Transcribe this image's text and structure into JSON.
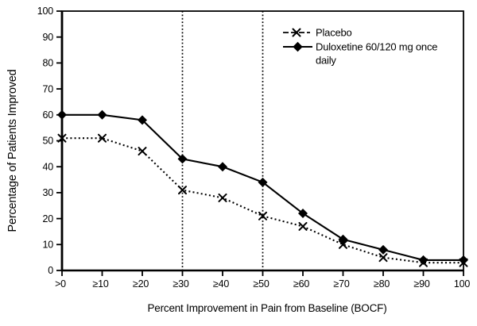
{
  "figure": {
    "background": "#ffffff",
    "ink": "#000000"
  },
  "chart_data": {
    "type": "line",
    "title": "",
    "xlabel": "Percent Improvement in Pain from Baseline (BOCF)",
    "ylabel": "Percentage of Patients Improved",
    "categories": [
      ">0",
      "≥10",
      "≥20",
      "≥30",
      "≥40",
      "≥50",
      "≥60",
      "≥70",
      "≥80",
      "≥90",
      "100"
    ],
    "y_ticks": [
      0,
      10,
      20,
      30,
      40,
      50,
      60,
      70,
      80,
      90,
      100
    ],
    "ylim": [
      0,
      100
    ],
    "grid": "off",
    "reference_lines": {
      "style": "dotted-vertical",
      "at_categories": [
        "≥30",
        "≥50"
      ]
    },
    "legend_position": "top-right-inside",
    "series": [
      {
        "name": "Placebo",
        "marker": "x",
        "line_style": "dotted",
        "color": "#000000",
        "values": [
          51,
          51,
          46,
          31,
          28,
          21,
          17,
          10,
          5,
          3,
          3
        ]
      },
      {
        "name": "Duloxetine 60/120 mg once daily",
        "marker": "diamond",
        "line_style": "solid",
        "color": "#000000",
        "values": [
          60,
          60,
          58,
          43,
          40,
          34,
          22,
          12,
          8,
          4,
          4
        ]
      }
    ],
    "legend": {
      "placebo_label": "Placebo",
      "duloxetine_label_line1": "Duloxetine 60/120 mg once",
      "duloxetine_label_line2": "daily"
    }
  }
}
